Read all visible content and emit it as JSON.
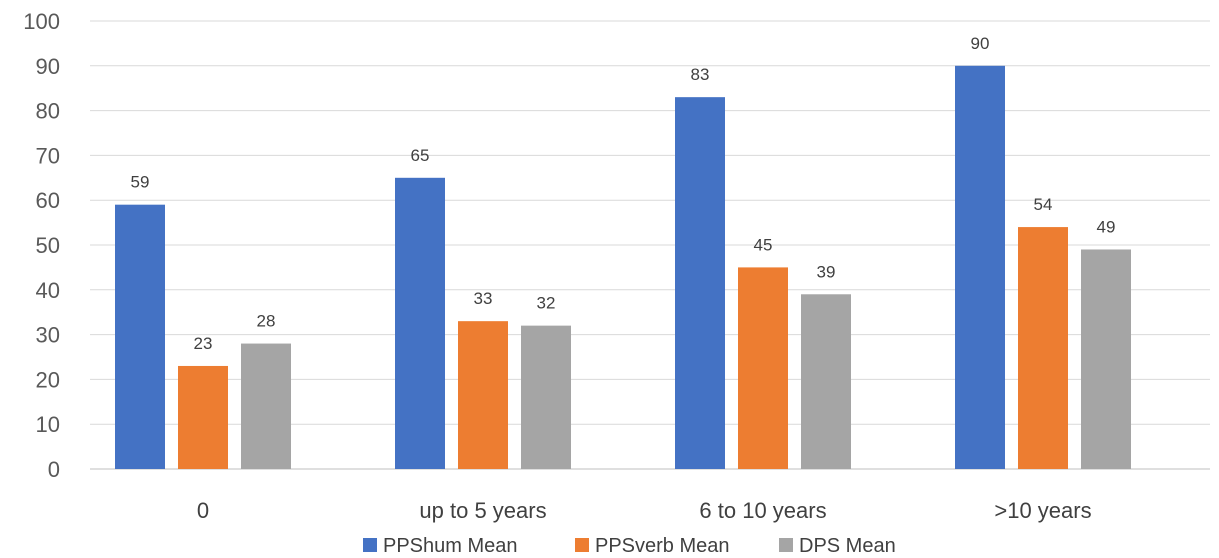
{
  "chart_data": {
    "type": "bar",
    "categories": [
      "0",
      "up to 5 years",
      "6 to 10 years",
      ">10 years"
    ],
    "series": [
      {
        "name": "PPShum Mean",
        "color": "#4472C4",
        "values": [
          59,
          65,
          83,
          90
        ]
      },
      {
        "name": "PPSverb Mean",
        "color": "#ED7D31",
        "values": [
          23,
          33,
          45,
          54
        ]
      },
      {
        "name": "DPS Mean",
        "color": "#A5A5A5",
        "values": [
          28,
          32,
          39,
          49
        ]
      }
    ],
    "yticks": [
      "0",
      "10",
      "20",
      "30",
      "40",
      "50",
      "60",
      "70",
      "80",
      "90",
      "100"
    ],
    "ylim": [
      0,
      100
    ],
    "grid": true,
    "legend_position": "bottom",
    "data_labels": true
  }
}
